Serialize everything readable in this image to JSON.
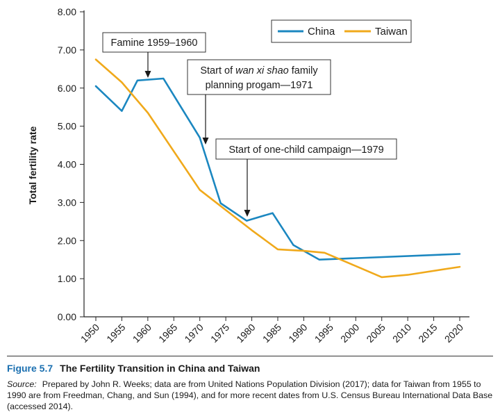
{
  "chart_data": {
    "type": "line",
    "ylabel": "Total fertility rate",
    "ylim": [
      0,
      8
    ],
    "yticks": [
      "0.00",
      "1.00",
      "2.00",
      "3.00",
      "4.00",
      "5.00",
      "6.00",
      "7.00",
      "8.00"
    ],
    "x": [
      1950,
      1955,
      1960,
      1965,
      1970,
      1975,
      1980,
      1985,
      1990,
      1995,
      2000,
      2005,
      2010,
      2015,
      2020
    ],
    "xticks": [
      "1950",
      "1955",
      "1960",
      "1965",
      "1970",
      "1975",
      "1980",
      "1985",
      "1990",
      "1995",
      "2000",
      "2005",
      "2010",
      "2015",
      "2020"
    ],
    "legend_position": "top-right",
    "series": [
      {
        "name": "China",
        "color": "#1b87c0",
        "points": [
          [
            1950,
            6.05
          ],
          [
            1955,
            5.4
          ],
          [
            1958,
            6.2
          ],
          [
            1963,
            6.25
          ],
          [
            1970,
            4.7
          ],
          [
            1974,
            2.98
          ],
          [
            1979,
            2.52
          ],
          [
            1984,
            2.72
          ],
          [
            1988,
            1.88
          ],
          [
            1993,
            1.5
          ],
          [
            2020,
            1.65
          ]
        ]
      },
      {
        "name": "Taiwan",
        "color": "#f0a91b",
        "points": [
          [
            1950,
            6.75
          ],
          [
            1955,
            6.15
          ],
          [
            1960,
            5.35
          ],
          [
            1970,
            3.33
          ],
          [
            1980,
            2.27
          ],
          [
            1985,
            1.77
          ],
          [
            1990,
            1.73
          ],
          [
            1994,
            1.68
          ],
          [
            2005,
            1.04
          ],
          [
            2010,
            1.1
          ],
          [
            2020,
            1.31
          ]
        ]
      }
    ],
    "annotations": [
      {
        "lines": [
          "Famine 1959–1960"
        ],
        "target": [
          1959,
          6.22
        ]
      },
      {
        "lines": [
          "Start of ",
          "wan xi shao",
          " family",
          "planning progam—1971"
        ],
        "target": [
          1971,
          4.2
        ]
      },
      {
        "lines": [
          "Start of one-child campaign—1979"
        ],
        "target": [
          1979,
          2.56
        ]
      }
    ]
  },
  "caption": {
    "figure_label": "Figure 5.7",
    "figure_title": "The Fertility Transition in China and Taiwan",
    "source_label": "Source:",
    "source_text": "Prepared by John R. Weeks; data are from United Nations Population Division (2017); data for Taiwan from 1955 to 1990 are from Freedman, Chang, and Sun (1994), and for more recent dates from U.S. Census Bureau International Data Base (accessed 2014)."
  }
}
